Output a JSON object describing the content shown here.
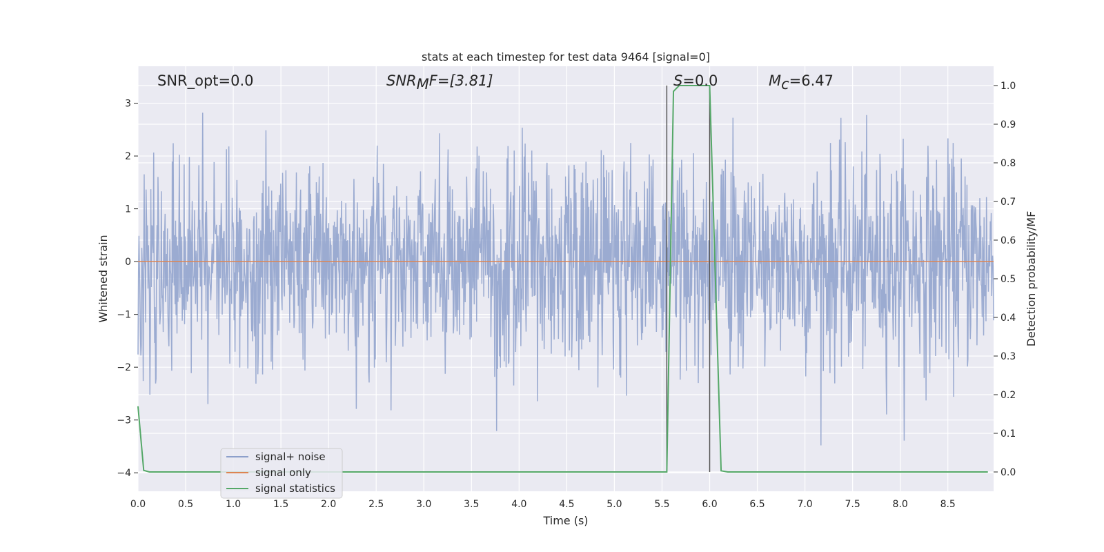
{
  "chart_data": {
    "type": "line",
    "title": "stats at each timestep for test data 9464 [signal=0]",
    "xlabel": "Time (s)",
    "ylabel_left": "Whitened strain",
    "ylabel_right": "Detection probability/MF",
    "xlim": [
      0.0,
      8.98
    ],
    "ylim_left": [
      -4.35,
      3.7
    ],
    "ylim_right": [
      -0.05,
      1.05
    ],
    "x_ticks": [
      "0.0",
      "0.5",
      "1.0",
      "1.5",
      "2.0",
      "2.5",
      "3.0",
      "3.5",
      "4.0",
      "4.5",
      "5.0",
      "5.5",
      "6.0",
      "6.5",
      "7.0",
      "7.5",
      "8.0",
      "8.5"
    ],
    "y_ticks_left": [
      "3",
      "2",
      "1",
      "0",
      "−1",
      "−2",
      "−3",
      "−4"
    ],
    "y_ticks_right": [
      "1.0",
      "0.9",
      "0.8",
      "0.7",
      "0.6",
      "0.5",
      "0.4",
      "0.3",
      "0.2",
      "0.1",
      "0.0"
    ],
    "grid": true,
    "legend_position": "lower-left",
    "annotations": {
      "snr_opt": "SNR_opt=0.0",
      "snr_mf_main": "SNR",
      "snr_mf_sub": "M",
      "snr_mf_rest": "F=[3.81]",
      "s_main": "S",
      "s_rest": "=0.0",
      "mc_main": "M",
      "mc_sub": "c",
      "mc_rest": "=6.47"
    },
    "vlines_x": [
      5.55,
      6.0
    ],
    "series": [
      {
        "name": "signal+ noise",
        "axis": "left",
        "color": "#8da0cb",
        "description_stats": {
          "mean": 0.0,
          "std": 1.0,
          "n_points": 1800
        }
      },
      {
        "name": "signal only",
        "axis": "left",
        "color": "#dd8452",
        "x": [
          0.0,
          8.98
        ],
        "y": [
          0.0,
          0.0
        ]
      },
      {
        "name": "signal statistics",
        "axis": "right",
        "color": "#55a868",
        "x": [
          0.0,
          0.06,
          0.12,
          5.55,
          5.62,
          5.68,
          6.0,
          6.12,
          6.19,
          8.92
        ],
        "y": [
          0.17,
          0.004,
          0.0,
          0.0,
          0.985,
          1.0,
          1.0,
          0.003,
          0.0,
          0.0
        ]
      }
    ]
  }
}
